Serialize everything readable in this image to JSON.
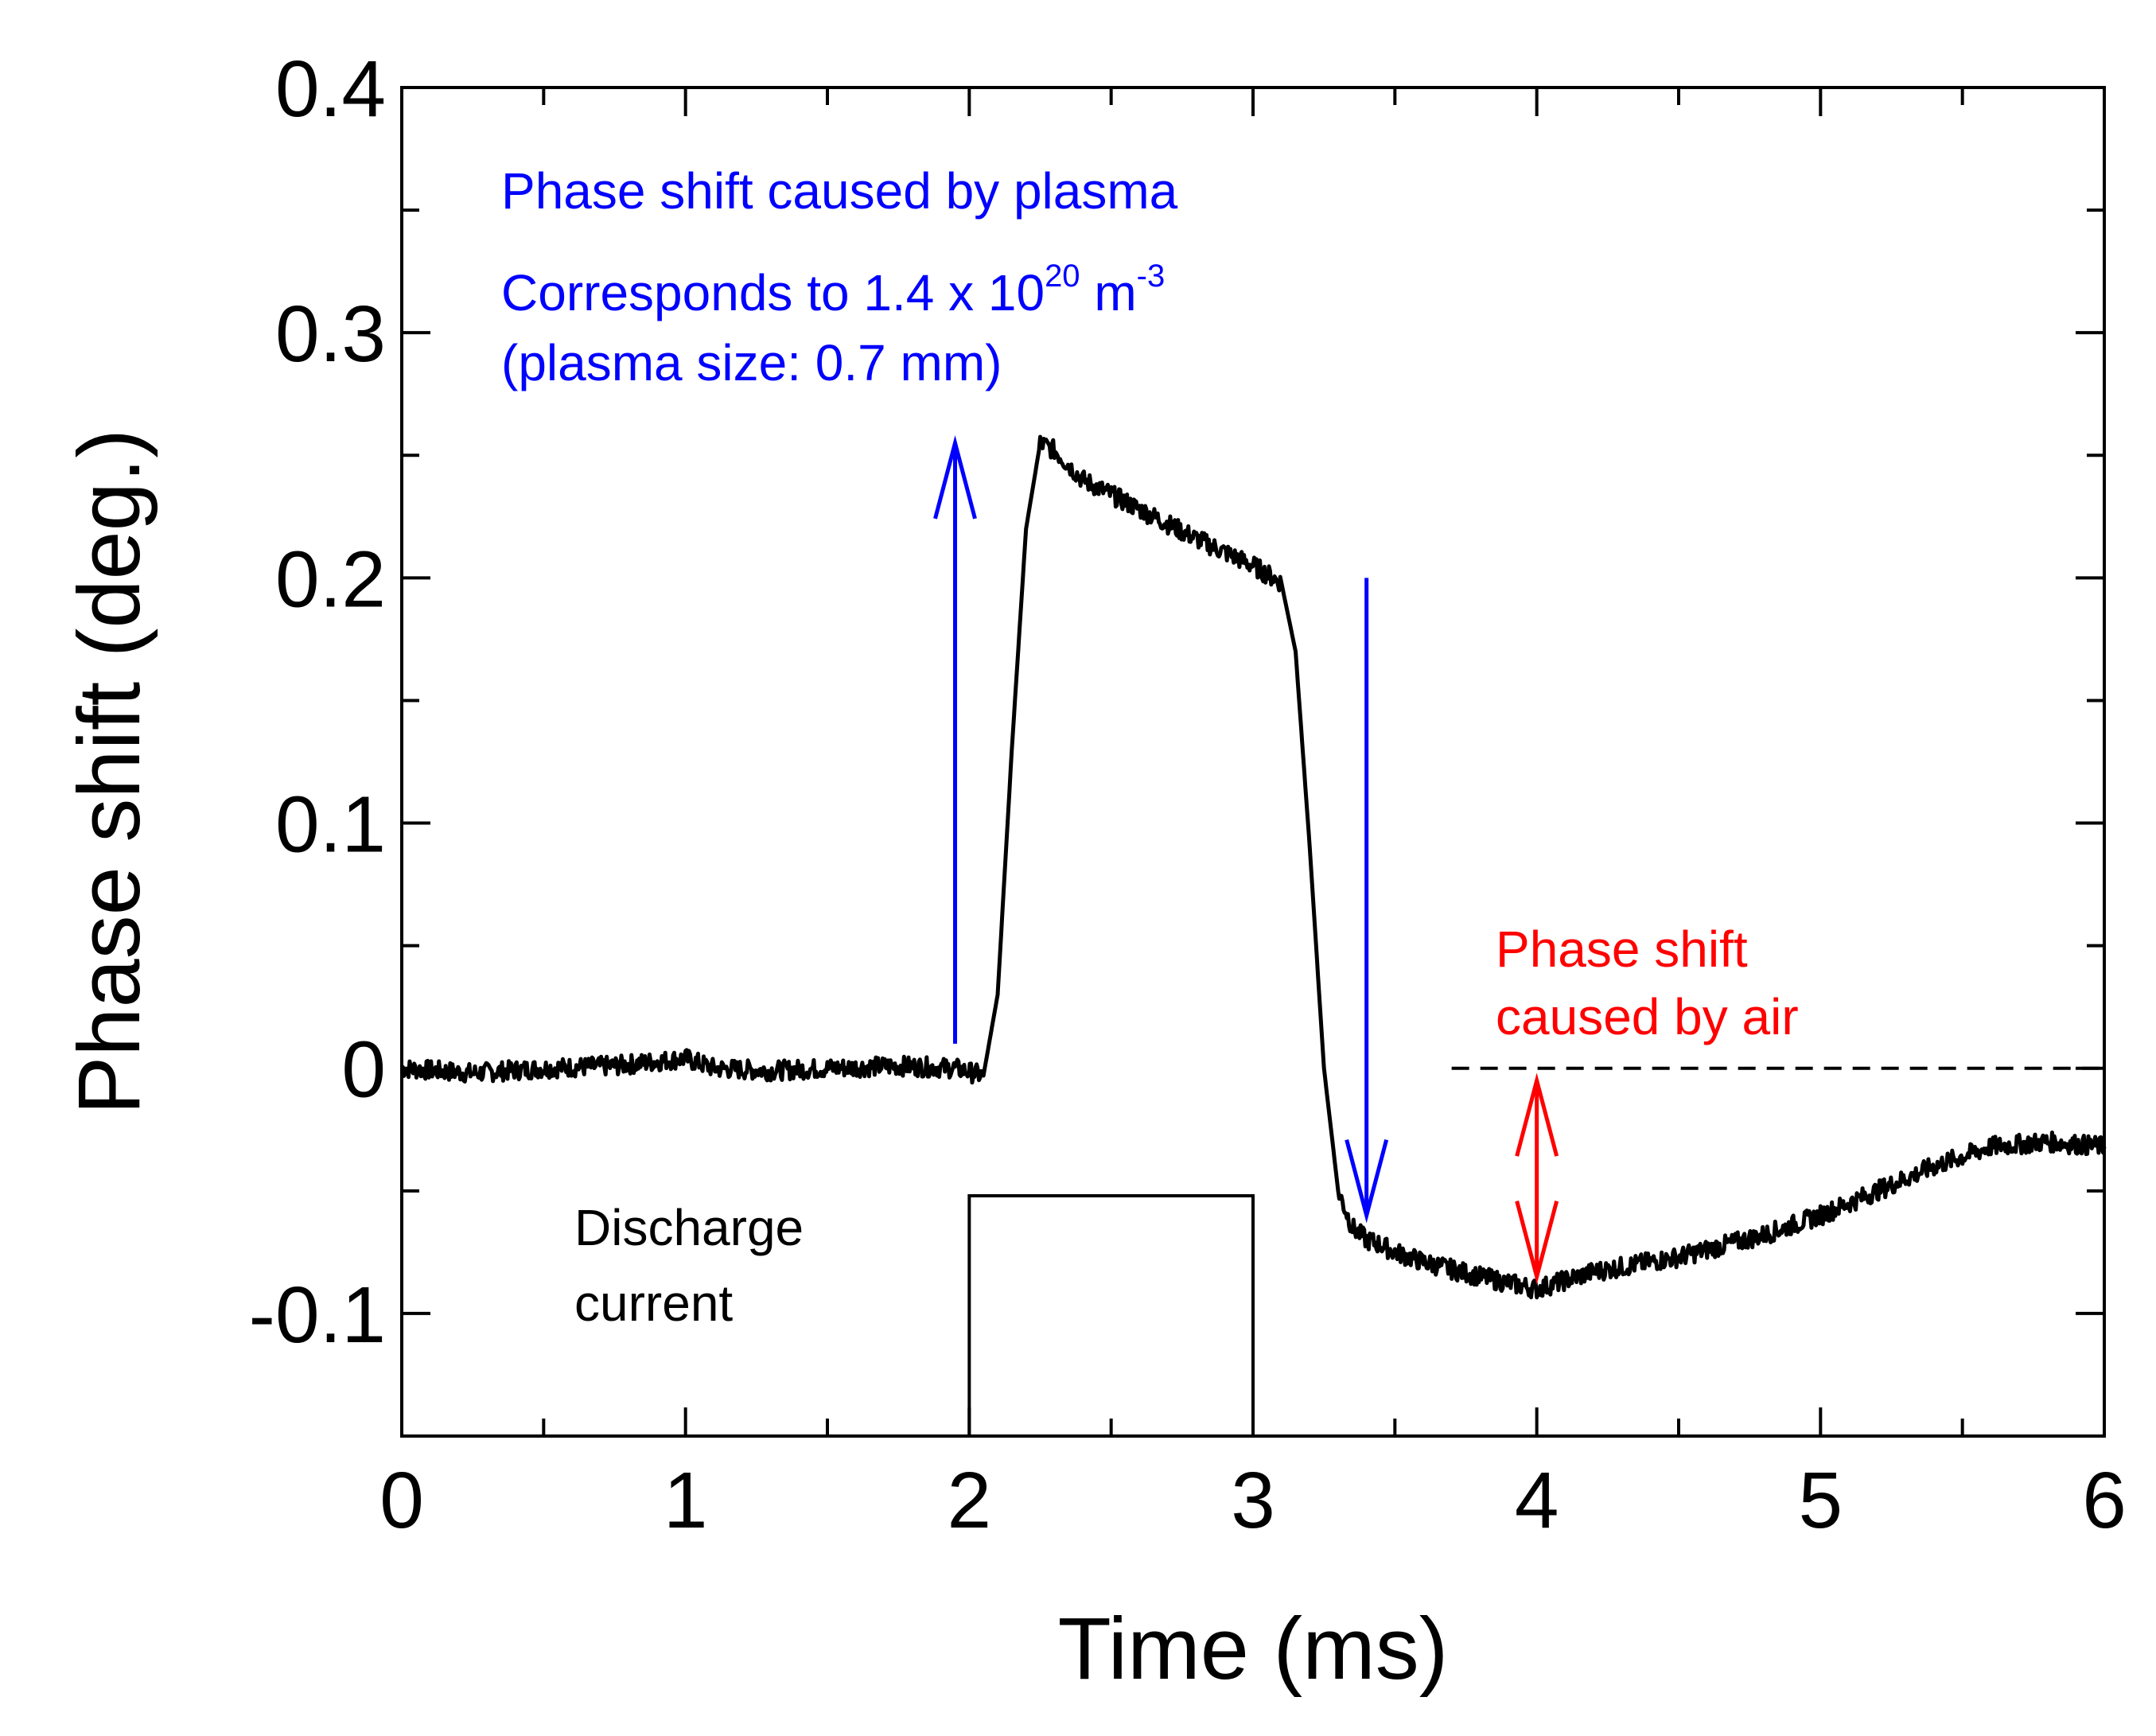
{
  "chart_data": {
    "type": "line",
    "xlabel": "Time (ms)",
    "ylabel": "Phase shift (deg.)",
    "xlim": [
      0,
      6
    ],
    "ylim": [
      -0.15,
      0.4
    ],
    "xticks": [
      0,
      1,
      2,
      3,
      4,
      5,
      6
    ],
    "xtick_labels": [
      "0",
      "1",
      "2",
      "3",
      "4",
      "5",
      "6"
    ],
    "yticks": [
      -0.1,
      0,
      0.1,
      0.2,
      0.3,
      0.4
    ],
    "ytick_labels": [
      "-0.1",
      "0",
      "0.1",
      "0.2",
      "0.3",
      "0.4"
    ],
    "series": [
      {
        "name": "Phase shift",
        "color": "#000000",
        "noisy": true,
        "x": [
          0,
          0.25,
          0.5,
          0.75,
          1.0,
          1.1,
          1.3,
          1.5,
          1.75,
          1.95,
          2.05,
          2.1,
          2.15,
          2.2,
          2.25,
          2.3,
          2.4,
          2.6,
          2.8,
          3.0,
          3.1,
          3.15,
          3.2,
          3.25,
          3.3,
          3.35,
          3.4,
          3.45,
          3.5,
          3.6,
          3.8,
          4.0,
          4.2,
          4.5,
          4.8,
          5.0,
          5.2,
          5.4,
          5.6,
          5.8,
          6.0
        ],
        "y": [
          0.0,
          -0.002,
          0.0,
          0.001,
          0.004,
          0.0,
          -0.001,
          0.0,
          0.001,
          0.0,
          -0.003,
          0.03,
          0.13,
          0.22,
          0.255,
          0.252,
          0.24,
          0.228,
          0.216,
          0.205,
          0.198,
          0.17,
          0.09,
          0.0,
          -0.05,
          -0.065,
          -0.07,
          -0.072,
          -0.075,
          -0.079,
          -0.085,
          -0.09,
          -0.083,
          -0.077,
          -0.068,
          -0.06,
          -0.05,
          -0.04,
          -0.032,
          -0.03,
          -0.032
        ]
      },
      {
        "name": "Discharge current",
        "color": "#000000",
        "x": [
          2,
          2,
          3,
          3
        ],
        "y": [
          -0.15,
          -0.052,
          -0.052,
          -0.15
        ]
      }
    ],
    "reference_line": {
      "x": [
        3.7,
        6.0
      ],
      "y": 0.0,
      "style": "dashed",
      "color": "#000000"
    },
    "arrows": [
      {
        "name": "plasma-rise",
        "x": 1.95,
        "y_from": 0.01,
        "y_to": 0.255,
        "color": "#0000ff",
        "direction": "up"
      },
      {
        "name": "plasma-fall",
        "x": 3.4,
        "y_from": 0.2,
        "y_to": -0.06,
        "color": "#0000ff",
        "direction": "down"
      },
      {
        "name": "air-shift",
        "x": 4.0,
        "y_from": -0.005,
        "y_to": -0.085,
        "color": "#ff0000",
        "direction": "both"
      }
    ],
    "annotations": {
      "plasma_title": "Phase shift caused by plasma",
      "plasma_line2_pre": "Corresponds to 1.4 x 10",
      "plasma_line2_exp": "20",
      "plasma_line2_unit": " m",
      "plasma_line2_unit_exp": "-3",
      "plasma_line3": "(plasma size: 0.7 mm)",
      "air_line1": "Phase shift",
      "air_line2": "caused by air",
      "discharge_line1": "Discharge",
      "discharge_line2": "current"
    },
    "colors": {
      "plasma": "#0000ff",
      "air": "#ff0000",
      "trace": "#000000"
    }
  }
}
